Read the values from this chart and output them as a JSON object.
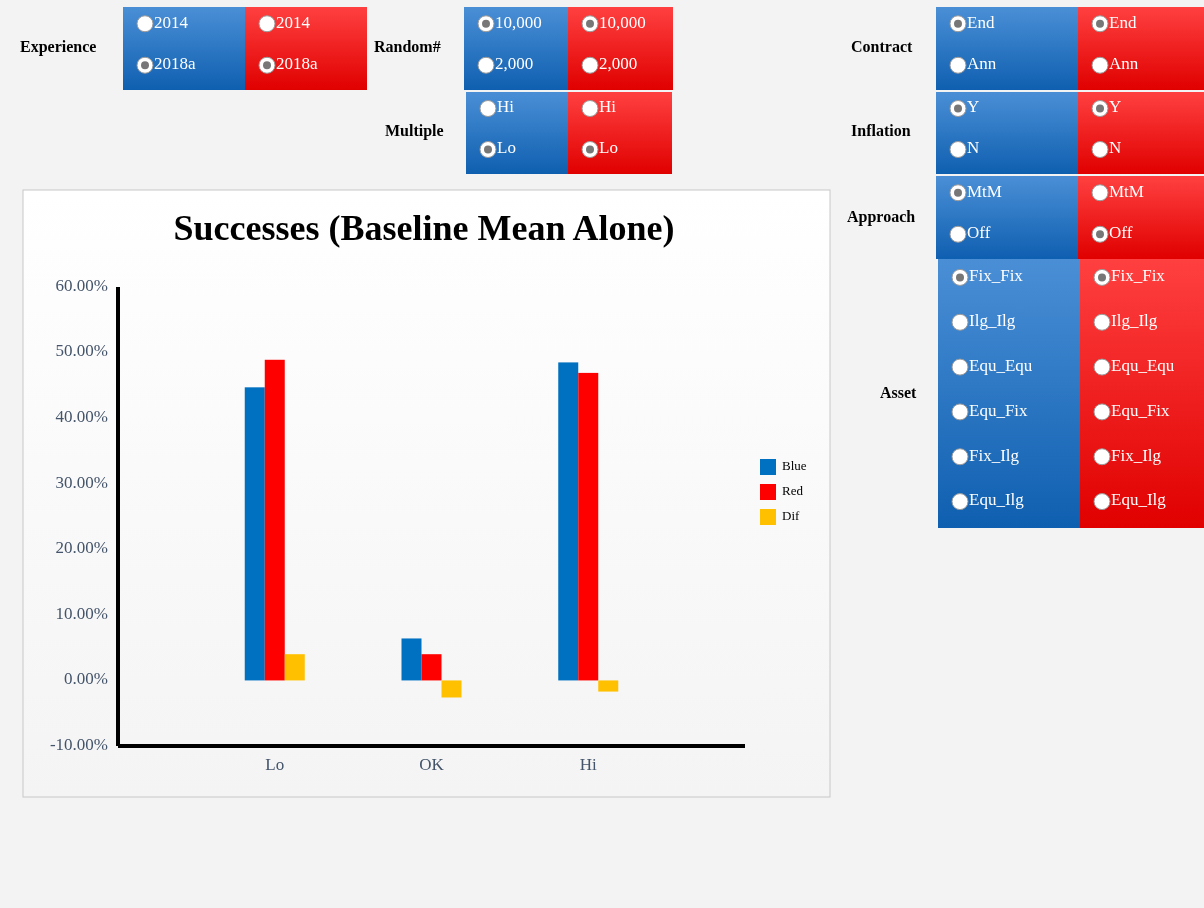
{
  "chart_data": [
    {
      "type": "bar",
      "title": "Successes (Baseline Mean Alone)",
      "categories": [
        "Lo",
        "OK",
        "Hi"
      ],
      "series": [
        {
          "name": "Blue",
          "color": "#0070c0",
          "values": [
            0.447,
            0.064,
            0.485
          ]
        },
        {
          "name": "Red",
          "color": "#ff0000",
          "values": [
            0.489,
            0.04,
            0.469
          ]
        },
        {
          "name": "Dif",
          "color": "#ffc000",
          "values": [
            0.04,
            -0.026,
            -0.017
          ]
        }
      ],
      "ylim": [
        -0.1,
        0.6
      ],
      "yticks": [
        {
          "value": -0.1,
          "label": "-10.00%"
        },
        {
          "value": 0,
          "label": "0.00%"
        },
        {
          "value": 0.1,
          "label": "10.00%"
        },
        {
          "value": 0.2,
          "label": "20.00%"
        },
        {
          "value": 0.3,
          "label": "30.00%"
        },
        {
          "value": 0.4,
          "label": "40.00%"
        },
        {
          "value": 0.5,
          "label": "50.00%"
        },
        {
          "value": 0.6,
          "label": "60.00%"
        }
      ],
      "grid": false,
      "legend": "right"
    },
    {
      "type": "other",
      "annotations": [
        "Experience",
        "2014",
        "2018a",
        "2014",
        "2018a",
        "Random#",
        "10,000",
        "2,000",
        "10,000",
        "2,000",
        "Multiple",
        "Hi",
        "Lo",
        "Hi",
        "Lo",
        "Contract",
        "End",
        "Ann",
        "End",
        "Ann",
        "Inflation",
        "Y",
        "N",
        "Y",
        "N",
        "Approach",
        "MtM",
        "Off",
        "MtM",
        "Off",
        "Asset",
        "Fix_Fix",
        "Ilg_Ilg",
        "Equ_Equ",
        "Equ_Fix",
        "Fix_Ilg",
        "Equ_Ilg",
        "Fix_Fix",
        "Ilg_Ilg",
        "Equ_Equ",
        "Equ_Fix",
        "Fix_Ilg",
        "Equ_Ilg"
      ]
    }
  ]
}
